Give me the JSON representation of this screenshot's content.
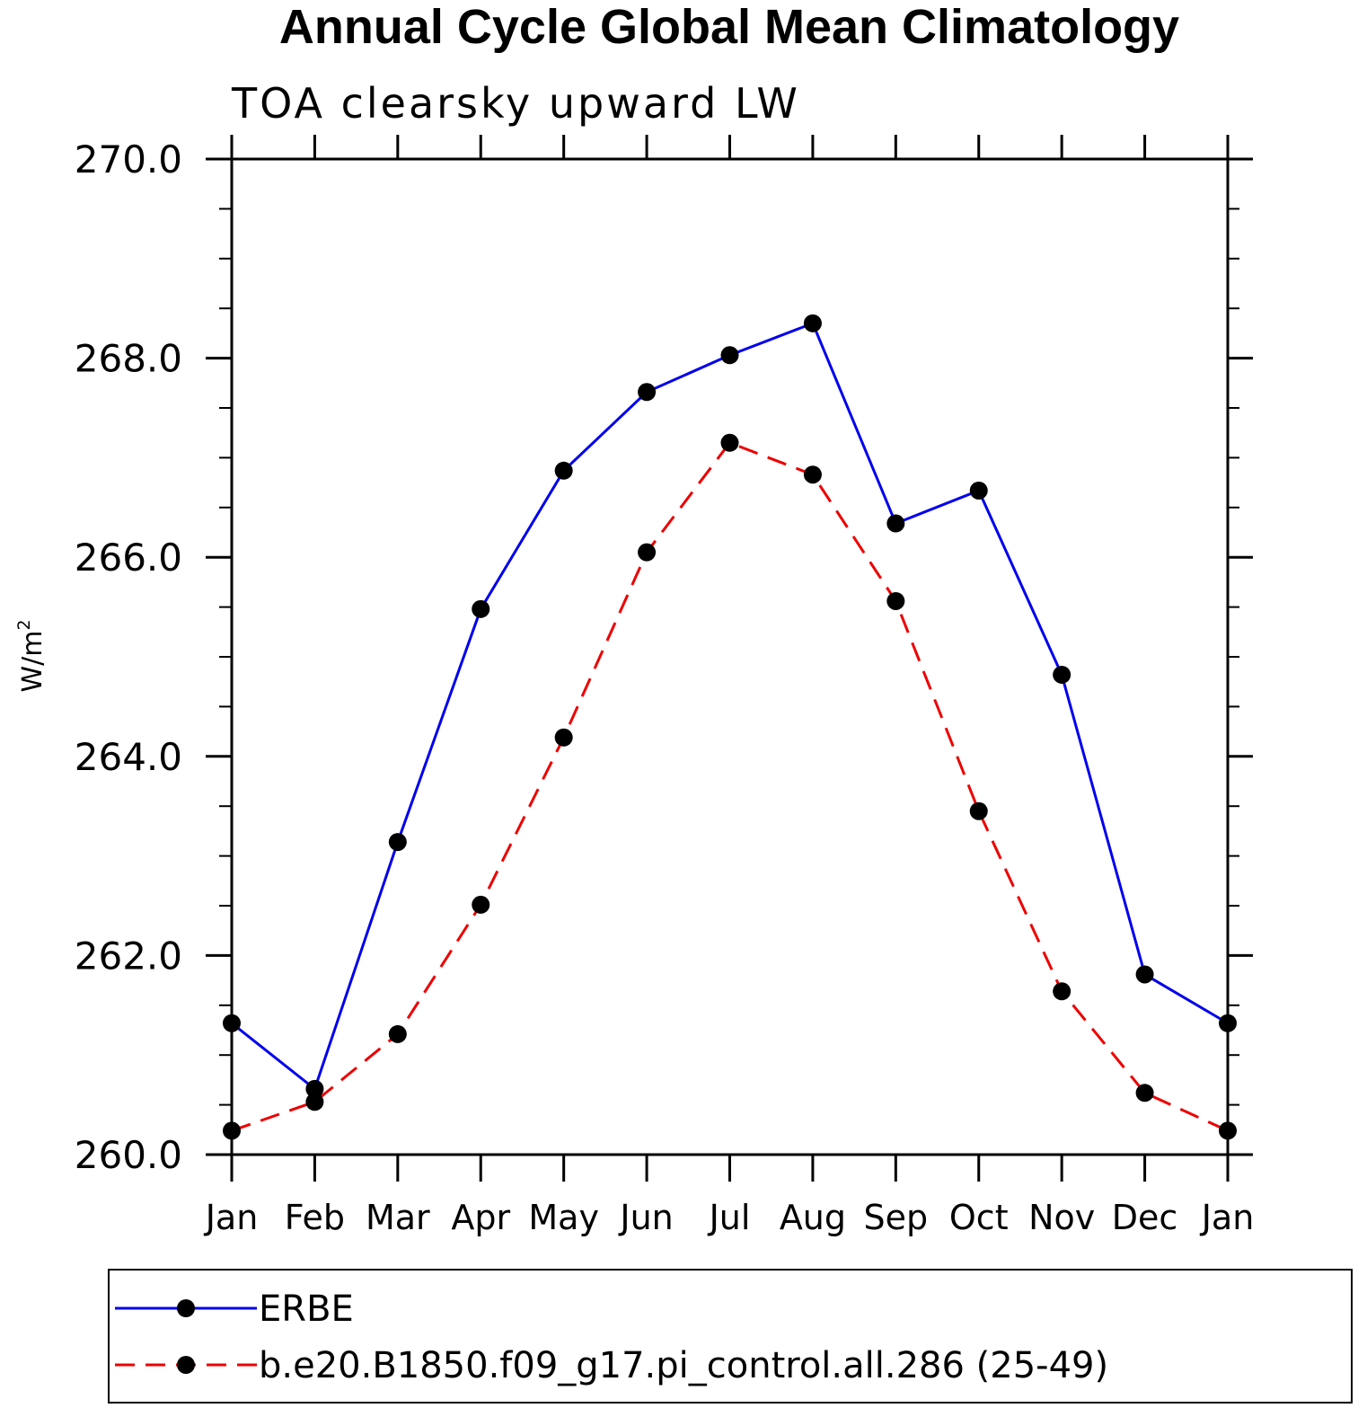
{
  "chart_data": {
    "type": "line",
    "title": "Annual Cycle Global Mean Climatology",
    "subtitle": "TOA clearsky upward LW",
    "ylabel_base": "W/m",
    "ylabel_sup": "2",
    "xlabel": "",
    "categories": [
      "Jan",
      "Feb",
      "Mar",
      "Apr",
      "May",
      "Jun",
      "Jul",
      "Aug",
      "Sep",
      "Oct",
      "Nov",
      "Dec",
      "Jan"
    ],
    "ylim": [
      260.0,
      270.0
    ],
    "yticks": [
      "260.0",
      "262.0",
      "264.0",
      "266.0",
      "268.0",
      "270.0"
    ],
    "series": [
      {
        "name": "ERBE",
        "color": "#0000ee",
        "dash": "solid",
        "values": [
          261.32,
          260.66,
          263.14,
          265.48,
          266.87,
          267.66,
          268.03,
          268.35,
          266.34,
          266.67,
          264.82,
          261.81,
          261.32
        ]
      },
      {
        "name": "b.e20.B1850.f09_g17.pi_control.all.286 (25-49)",
        "color": "#ee0000",
        "dash": "dashed",
        "values": [
          260.24,
          260.53,
          261.21,
          262.51,
          264.19,
          266.05,
          267.15,
          266.83,
          265.56,
          263.45,
          261.64,
          260.62,
          260.24
        ]
      }
    ],
    "legend_position": "bottom"
  }
}
